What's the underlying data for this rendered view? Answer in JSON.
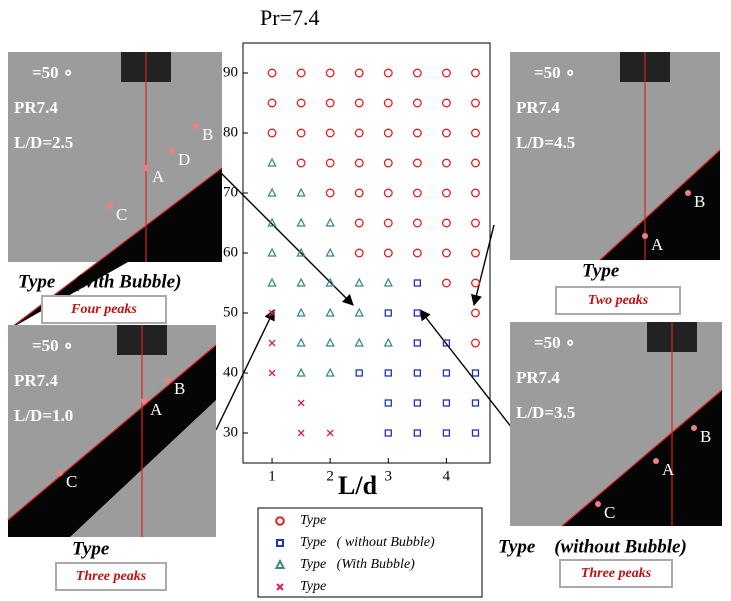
{
  "chart_data": {
    "type": "scatter",
    "title": "Pr=7.4",
    "x_label": "L/d",
    "xlim": [
      0.5,
      4.75
    ],
    "ylim": [
      25,
      95
    ],
    "xticks": [
      1,
      2,
      3,
      4
    ],
    "yticks": [
      30,
      40,
      50,
      60,
      70,
      80,
      90
    ],
    "series": [
      {
        "name": "Type",
        "marker": "circle",
        "color": "#e02020",
        "x": [
          1,
          1.5,
          2,
          2.5,
          3,
          3.5,
          4,
          4.5,
          1,
          1.5,
          2,
          2.5,
          3,
          3.5,
          4,
          4.5,
          1,
          1.5,
          2,
          2.5,
          3,
          3.5,
          4,
          4.5,
          1.5,
          2,
          2.5,
          3,
          3.5,
          4,
          4.5,
          2,
          2.5,
          3,
          3.5,
          4,
          4.5,
          2.5,
          3,
          3.5,
          4,
          4.5,
          2.5,
          3,
          3.5,
          4,
          4.5,
          4,
          4.5,
          4.5,
          4.5
        ],
        "values": [
          90,
          90,
          90,
          90,
          90,
          90,
          90,
          90,
          85,
          85,
          85,
          85,
          85,
          85,
          85,
          85,
          80,
          80,
          80,
          80,
          80,
          80,
          80,
          80,
          75,
          75,
          75,
          75,
          75,
          75,
          75,
          70,
          70,
          70,
          70,
          70,
          70,
          65,
          65,
          65,
          65,
          65,
          60,
          60,
          60,
          60,
          60,
          55,
          55,
          50,
          45
        ]
      },
      {
        "name": "Type   ( without Bubble)",
        "marker": "square",
        "color": "#2030c0",
        "x": [
          3.5,
          3,
          3.5,
          3.5,
          4,
          2.5,
          3,
          3.5,
          4,
          4.5,
          3,
          3.5,
          4,
          4.5,
          3,
          3.5,
          4,
          4.5
        ],
        "values": [
          55,
          50,
          50,
          45,
          45,
          40,
          40,
          40,
          40,
          40,
          35,
          35,
          35,
          35,
          30,
          30,
          30,
          30
        ]
      },
      {
        "name": "Type   (With Bubble)",
        "marker": "triangle",
        "color": "#3a8a88",
        "x": [
          1,
          1,
          1.5,
          1,
          1.5,
          2,
          1,
          1.5,
          2,
          1,
          1.5,
          2,
          2.5,
          3,
          1.5,
          2,
          2.5,
          1.5,
          2,
          2.5,
          3,
          1.5,
          2
        ],
        "values": [
          75,
          70,
          70,
          65,
          65,
          65,
          60,
          60,
          60,
          55,
          55,
          55,
          55,
          55,
          50,
          50,
          50,
          45,
          45,
          45,
          45,
          40,
          40
        ]
      },
      {
        "name": "Type",
        "marker": "cross",
        "color": "#d0206a",
        "x": [
          1,
          1,
          1,
          1.5,
          1.5,
          2
        ],
        "values": [
          50,
          45,
          40,
          35,
          30,
          30
        ]
      }
    ]
  },
  "panels": [
    {
      "lines": [
        "=50 ∘",
        "PR7.4",
        "L/D=2.5"
      ],
      "points": [
        "B",
        "D",
        "A",
        "C"
      ],
      "caption": "Type    (with Bubble)",
      "peaks": "Four peaks"
    },
    {
      "lines": [
        "=50 ∘",
        "PR7.4",
        "L/D=1.0"
      ],
      "points": [
        "B",
        "A",
        "C"
      ],
      "caption": "Type",
      "peaks": "Three peaks"
    },
    {
      "lines": [
        "=50 ∘",
        "PR7.4",
        "L/D=4.5"
      ],
      "points": [
        "B",
        "A"
      ],
      "caption": "Type",
      "peaks": "Two peaks"
    },
    {
      "lines": [
        "=50 ∘",
        "PR7.4",
        "L/D=3.5"
      ],
      "points": [
        "B",
        "A",
        "C"
      ],
      "caption": "Type    (without Bubble)",
      "peaks": "Three peaks"
    }
  ]
}
